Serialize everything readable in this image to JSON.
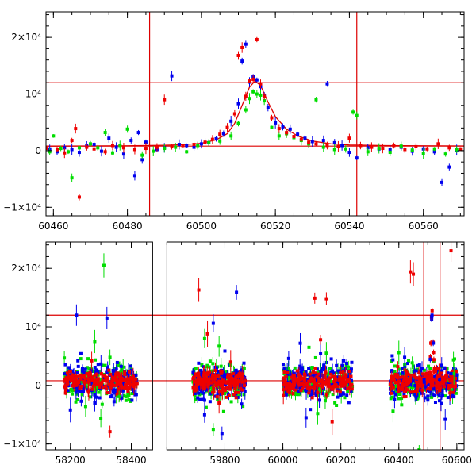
{
  "chart_data": [
    {
      "type": "scatter",
      "panel": "top",
      "xlim": [
        60458,
        60571
      ],
      "ylim": [
        -11500,
        24500
      ],
      "x_ticks": [
        {
          "value": 60460,
          "label": "60460"
        },
        {
          "value": 60480,
          "label": "60480"
        },
        {
          "value": 60500,
          "label": "60500"
        },
        {
          "value": 60520,
          "label": "60520"
        },
        {
          "value": 60540,
          "label": "60540"
        },
        {
          "value": 60560,
          "label": "60560"
        }
      ],
      "y_ticks": [
        {
          "value": -10000,
          "label": "−1×10⁴"
        },
        {
          "value": 0,
          "label": "0"
        },
        {
          "value": 10000,
          "label": "10⁴"
        },
        {
          "value": 20000,
          "label": "2×10⁴"
        }
      ],
      "hlines": [
        800,
        12000
      ],
      "vlines": [
        60486,
        60542
      ],
      "model_curve": {
        "color": "#dd0000",
        "x": [
          60458,
          60470,
          60480,
          60490,
          60495,
          60500,
          60504,
          60507,
          60509,
          60511,
          60513,
          60514.5,
          60516,
          60518,
          60520,
          60523,
          60526,
          60530,
          60535,
          60540,
          60550,
          60571
        ],
        "y": [
          800,
          820,
          860,
          950,
          1050,
          1300,
          1900,
          3000,
          4800,
          8000,
          11200,
          12300,
          11500,
          8600,
          6000,
          3800,
          2600,
          1700,
          1200,
          1000,
          900,
          820
        ]
      },
      "series": [
        {
          "name": "",
          "color": "#0000ee",
          "points": [
            [
              60459,
              300
            ],
            [
              60461,
              -200
            ],
            [
              60463,
              500
            ],
            [
              60465,
              200
            ],
            [
              60467,
              -300
            ],
            [
              60469,
              900
            ],
            [
              60471,
              1100
            ],
            [
              60473,
              -100
            ],
            [
              60475,
              2200
            ],
            [
              60477,
              600
            ],
            [
              60479,
              -600
            ],
            [
              60481,
              1800
            ],
            [
              60482,
              -4400
            ],
            [
              60483,
              3200
            ],
            [
              60484,
              -1600
            ],
            [
              60485,
              1500
            ],
            [
              60488,
              200
            ],
            [
              60490,
              500
            ],
            [
              60492,
              13200
            ],
            [
              60494,
              1100
            ],
            [
              60496,
              900
            ],
            [
              60498,
              600
            ],
            [
              60500,
              1200
            ],
            [
              60502,
              1400
            ],
            [
              60504,
              2100
            ],
            [
              60506,
              3000
            ],
            [
              60508,
              5200
            ],
            [
              60510,
              8300
            ],
            [
              60511,
              15800
            ],
            [
              60512,
              18800
            ],
            [
              60513,
              12100
            ],
            [
              60514,
              13100
            ],
            [
              60515,
              12500
            ],
            [
              60516,
              11300
            ],
            [
              60517,
              9800
            ],
            [
              60518,
              7600
            ],
            [
              60520,
              4900
            ],
            [
              60522,
              4200
            ],
            [
              60524,
              3800
            ],
            [
              60526,
              2900
            ],
            [
              60528,
              2200
            ],
            [
              60530,
              1600
            ],
            [
              60533,
              1800
            ],
            [
              60534,
              11800
            ],
            [
              60536,
              1400
            ],
            [
              60538,
              900
            ],
            [
              60540,
              -300
            ],
            [
              60542,
              -1300
            ],
            [
              60545,
              500
            ],
            [
              60548,
              300
            ],
            [
              60551,
              200
            ],
            [
              60554,
              600
            ],
            [
              60557,
              -100
            ],
            [
              60560,
              300
            ],
            [
              60563,
              -200
            ],
            [
              60565,
              -5600
            ],
            [
              60567,
              -2900
            ],
            [
              60569,
              100
            ]
          ]
        },
        {
          "name": "",
          "color": "#00dd00",
          "points": [
            [
              60459,
              -200
            ],
            [
              60460,
              2600
            ],
            [
              60462,
              400
            ],
            [
              60464,
              -200
            ],
            [
              60465,
              -4800
            ],
            [
              60467,
              500
            ],
            [
              60470,
              1200
            ],
            [
              60472,
              500
            ],
            [
              60474,
              3200
            ],
            [
              60476,
              -400
            ],
            [
              60478,
              900
            ],
            [
              60480,
              3800
            ],
            [
              60484,
              -800
            ],
            [
              60487,
              -100
            ],
            [
              60490,
              400
            ],
            [
              60493,
              600
            ],
            [
              60496,
              -200
            ],
            [
              60499,
              900
            ],
            [
              60502,
              1400
            ],
            [
              60505,
              1700
            ],
            [
              60508,
              2600
            ],
            [
              60510,
              4800
            ],
            [
              60512,
              7200
            ],
            [
              60513,
              9200
            ],
            [
              60514,
              10400
            ],
            [
              60515,
              10000
            ],
            [
              60516,
              9800
            ],
            [
              60517,
              8800
            ],
            [
              60519,
              4100
            ],
            [
              60521,
              2600
            ],
            [
              60523,
              3000
            ],
            [
              60525,
              2300
            ],
            [
              60527,
              1800
            ],
            [
              60529,
              1200
            ],
            [
              60531,
              9000
            ],
            [
              60533,
              600
            ],
            [
              60536,
              200
            ],
            [
              60539,
              300
            ],
            [
              60541,
              6800
            ],
            [
              60542,
              6200
            ],
            [
              60545,
              -200
            ],
            [
              60548,
              400
            ],
            [
              60551,
              -300
            ],
            [
              60554,
              800
            ],
            [
              60557,
              100
            ],
            [
              60560,
              -500
            ],
            [
              60563,
              300
            ],
            [
              60566,
              -600
            ],
            [
              60569,
              200
            ]
          ]
        },
        {
          "name": "",
          "color": "#ee0000",
          "points": [
            [
              60458,
              400
            ],
            [
              60461,
              200
            ],
            [
              60463,
              -400
            ],
            [
              60465,
              1800
            ],
            [
              60466,
              3900
            ],
            [
              60467,
              -8200
            ],
            [
              60469,
              600
            ],
            [
              60471,
              300
            ],
            [
              60474,
              -200
            ],
            [
              60476,
              900
            ],
            [
              60479,
              500
            ],
            [
              60482,
              200
            ],
            [
              60485,
              400
            ],
            [
              60488,
              600
            ],
            [
              60490,
              9000
            ],
            [
              60492,
              700
            ],
            [
              60495,
              900
            ],
            [
              60498,
              1100
            ],
            [
              60501,
              1500
            ],
            [
              60503,
              2000
            ],
            [
              60505,
              2900
            ],
            [
              60507,
              4100
            ],
            [
              60509,
              6500
            ],
            [
              60510,
              16800
            ],
            [
              60511,
              18200
            ],
            [
              60512,
              9600
            ],
            [
              60513,
              12300
            ],
            [
              60514,
              12600
            ],
            [
              60515,
              19600
            ],
            [
              60516,
              11800
            ],
            [
              60517,
              9600
            ],
            [
              60519,
              5800
            ],
            [
              60521,
              3900
            ],
            [
              60523,
              3200
            ],
            [
              60525,
              2500
            ],
            [
              60527,
              2000
            ],
            [
              60529,
              1500
            ],
            [
              60531,
              1200
            ],
            [
              60534,
              900
            ],
            [
              60537,
              700
            ],
            [
              60540,
              2200
            ],
            [
              60543,
              900
            ],
            [
              60546,
              600
            ],
            [
              60549,
              400
            ],
            [
              60552,
              900
            ],
            [
              60555,
              200
            ],
            [
              60558,
              700
            ],
            [
              60561,
              300
            ],
            [
              60564,
              1200
            ],
            [
              60567,
              500
            ],
            [
              60570,
              300
            ]
          ]
        }
      ]
    },
    {
      "type": "scatter",
      "panel": "bottom",
      "xlim": [
        58120,
        60625
      ],
      "axis_break": {
        "low": [
          58120,
          58470
        ],
        "high": [
          59600,
          60625
        ]
      },
      "ylim": [
        -11000,
        24500
      ],
      "x_ticks": [
        {
          "value": 58200,
          "label": "58200"
        },
        {
          "value": 58400,
          "label": "58400"
        },
        {
          "value": 59800,
          "label": "59800"
        },
        {
          "value": 60000,
          "label": "60000"
        },
        {
          "value": 60200,
          "label": "60200"
        },
        {
          "value": 60400,
          "label": "60400"
        },
        {
          "value": 60600,
          "label": "60600"
        }
      ],
      "y_ticks": [
        {
          "value": -10000,
          "label": "−1×10⁴"
        },
        {
          "value": 0,
          "label": "0"
        },
        {
          "value": 10000,
          "label": "10⁴"
        },
        {
          "value": 20000,
          "label": "2×10⁴"
        }
      ],
      "hlines": [
        800,
        12000
      ],
      "vlines": [
        60486,
        60542
      ],
      "seasons": [
        [
          58180,
          58420
        ],
        [
          59690,
          59870
        ],
        [
          60000,
          60240
        ],
        [
          60370,
          60600
        ]
      ],
      "outliers": [
        {
          "color": "#00dd00",
          "points": [
            [
              58310,
              20500
            ],
            [
              58280,
              7500
            ],
            [
              58330,
              4800
            ],
            [
              58250,
              -3600
            ],
            [
              58360,
              -1900
            ],
            [
              58300,
              -5600
            ],
            [
              59730,
              8000
            ],
            [
              59780,
              6700
            ],
            [
              59760,
              -7500
            ],
            [
              59820,
              3500
            ],
            [
              60090,
              6500
            ],
            [
              60150,
              5500
            ],
            [
              60120,
              -4800
            ],
            [
              60400,
              5600
            ],
            [
              60420,
              3600
            ],
            [
              60470,
              -11000
            ],
            [
              60380,
              -4400
            ],
            [
              60590,
              2000
            ]
          ]
        },
        {
          "color": "#0000ee",
          "points": [
            [
              58320,
              11500
            ],
            [
              58220,
              12000
            ],
            [
              58200,
              -4200
            ],
            [
              58280,
              -3000
            ],
            [
              59760,
              10600
            ],
            [
              59840,
              15900
            ],
            [
              59730,
              -5000
            ],
            [
              59790,
              -8200
            ],
            [
              60020,
              4600
            ],
            [
              60060,
              7200
            ],
            [
              60130,
              5400
            ],
            [
              60210,
              4200
            ],
            [
              60080,
              -5500
            ],
            [
              60420,
              4800
            ],
            [
              60460,
              2500
            ],
            [
              60500,
              -2500
            ],
            [
              60560,
              -5800
            ],
            [
              60580,
              2000
            ]
          ]
        },
        {
          "color": "#ee0000",
          "points": [
            [
              58330,
              -7900
            ],
            [
              58270,
              4200
            ],
            [
              59710,
              16300
            ],
            [
              59740,
              8800
            ],
            [
              59820,
              4000
            ],
            [
              59780,
              -3000
            ],
            [
              60110,
              14900
            ],
            [
              60150,
              14800
            ],
            [
              60170,
              -6200
            ],
            [
              60130,
              7800
            ],
            [
              60440,
              19400
            ],
            [
              60450,
              19000
            ],
            [
              60580,
              23000
            ],
            [
              60395,
              1800
            ]
          ]
        }
      ],
      "series": []
    }
  ]
}
